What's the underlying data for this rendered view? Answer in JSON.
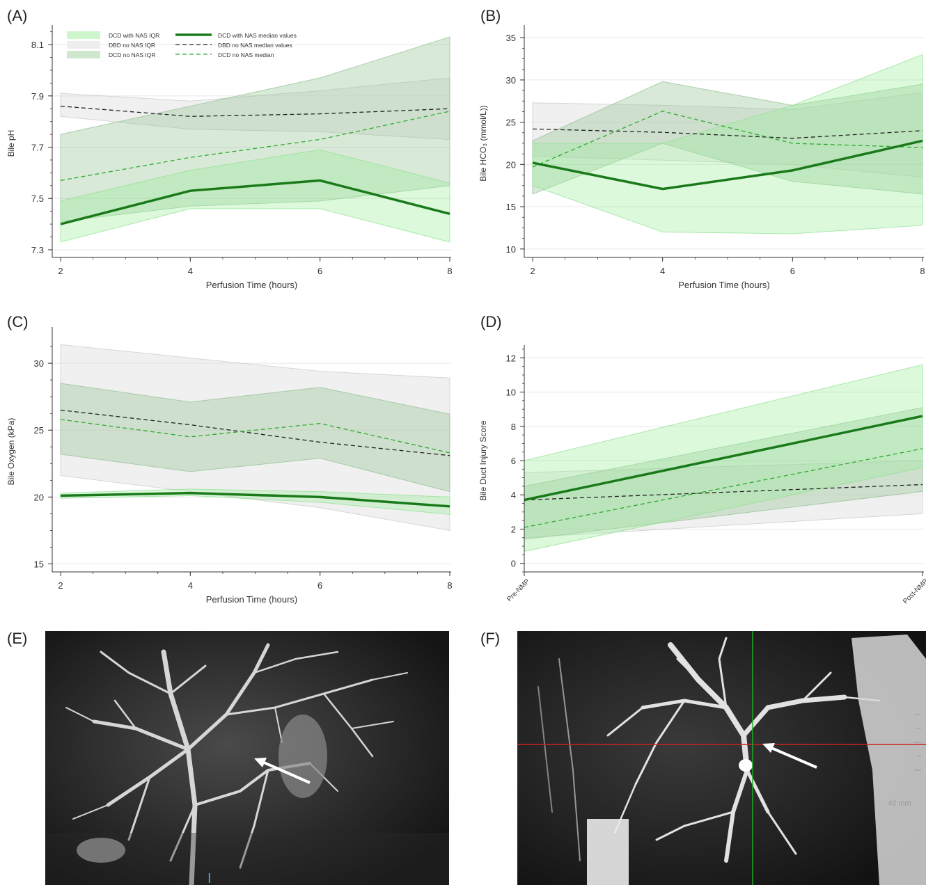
{
  "panels": [
    {
      "letter": "(A)"
    },
    {
      "letter": "(B)"
    },
    {
      "letter": "(C)"
    },
    {
      "letter": "(D)"
    },
    {
      "letter": "(E)"
    },
    {
      "letter": "(F)"
    }
  ],
  "legend": {
    "dcd_nas_iqr": "DCD with NAS IQR",
    "dbd_iqr": "DBD no NAS IQR",
    "dcd_no_nas_iqr": "DCD no NAS IQR",
    "dcd_nas_median": "DCD with NAS median values",
    "dbd_median": "DBD no NAS median values",
    "dcd_no_nas_median": "DCD no NAS median"
  },
  "colors": {
    "dcd_nas_line": "#1a7a1a",
    "dcd_nas_band": "#b8f2b8",
    "dbd_band": "#dcdcdc",
    "dcd_no_nas_band": "#9cc79c",
    "dbd_line": "#222222",
    "dcd_no_nas_line": "#2eaa2e"
  },
  "images": {
    "f_scale": "40 mm"
  },
  "chart_data": [
    {
      "type": "line",
      "panel": "A",
      "xlabel": "Perfusion Time (hours)",
      "ylabel": "Bile pH",
      "x": [
        2,
        4,
        6,
        8
      ],
      "x_tick_labels": [
        "2",
        "4",
        "6",
        "8"
      ],
      "ylim": [
        7.27,
        8.16
      ],
      "y_ticks": [
        7.3,
        7.5,
        7.7,
        7.9,
        8.1
      ],
      "y_tick_labels": [
        "7.3",
        "7.5",
        "7.7",
        "7.9",
        "8.1"
      ],
      "grid": true,
      "legend_position": "top",
      "series": [
        {
          "name": "DBD no NAS IQR",
          "kind": "band",
          "low": [
            7.82,
            7.77,
            7.76,
            7.73
          ],
          "high": [
            7.91,
            7.88,
            7.92,
            7.97
          ]
        },
        {
          "name": "DCD no NAS IQR",
          "kind": "band",
          "low": [
            7.41,
            7.47,
            7.49,
            7.55
          ],
          "high": [
            7.75,
            7.86,
            7.97,
            8.13
          ]
        },
        {
          "name": "DCD with NAS IQR",
          "kind": "band",
          "low": [
            7.33,
            7.46,
            7.46,
            7.33
          ],
          "high": [
            7.49,
            7.61,
            7.69,
            7.56
          ]
        },
        {
          "name": "DBD no NAS median values",
          "kind": "line",
          "values": [
            7.86,
            7.82,
            7.83,
            7.85
          ]
        },
        {
          "name": "DCD no NAS median",
          "kind": "line",
          "values": [
            7.57,
            7.66,
            7.73,
            7.84
          ]
        },
        {
          "name": "DCD with NAS median values",
          "kind": "line",
          "values": [
            7.4,
            7.53,
            7.57,
            7.44
          ]
        }
      ]
    },
    {
      "type": "line",
      "panel": "B",
      "xlabel": "Perfusion Time (hours)",
      "ylabel": "Bile HCO₃ (mmol/L))",
      "x": [
        2,
        4,
        6,
        8
      ],
      "x_tick_labels": [
        "2",
        "4",
        "6",
        "8"
      ],
      "ylim": [
        9,
        36
      ],
      "y_ticks": [
        10,
        15,
        20,
        25,
        30,
        35
      ],
      "y_tick_labels": [
        "10",
        "15",
        "20",
        "25",
        "30",
        "35"
      ],
      "grid": true,
      "series": [
        {
          "name": "DBD no NAS IQR",
          "kind": "band",
          "low": [
            21.0,
            20.5,
            20.0,
            18.5
          ],
          "high": [
            27.3,
            27.0,
            26.5,
            28.5
          ]
        },
        {
          "name": "DCD no NAS IQR",
          "kind": "band",
          "low": [
            16.5,
            22.5,
            18.0,
            16.5
          ],
          "high": [
            22.8,
            29.8,
            27.0,
            29.5
          ]
        },
        {
          "name": "DCD with NAS IQR",
          "kind": "band",
          "low": [
            17.5,
            12.0,
            11.8,
            12.8
          ],
          "high": [
            22.5,
            22.5,
            27.0,
            33.0
          ]
        },
        {
          "name": "DBD no NAS median values",
          "kind": "line",
          "values": [
            24.2,
            23.8,
            23.1,
            24.0
          ]
        },
        {
          "name": "DCD no NAS median",
          "kind": "line",
          "values": [
            19.7,
            26.3,
            22.5,
            22.0
          ]
        },
        {
          "name": "DCD with NAS median values",
          "kind": "line",
          "values": [
            20.2,
            17.1,
            19.3,
            22.8
          ]
        }
      ]
    },
    {
      "type": "line",
      "panel": "C",
      "xlabel": "Perfusion Time (hours)",
      "ylabel": "Bile Oxygen (kPa)",
      "x": [
        2,
        4,
        6,
        8
      ],
      "x_tick_labels": [
        "2",
        "4",
        "6",
        "8"
      ],
      "ylim": [
        14.4,
        32.4
      ],
      "y_ticks": [
        15,
        20,
        25,
        30
      ],
      "y_tick_labels": [
        "15",
        "20",
        "25",
        "30"
      ],
      "grid": true,
      "series": [
        {
          "name": "DBD no NAS IQR",
          "kind": "band",
          "low": [
            21.6,
            20.4,
            19.2,
            17.5
          ],
          "high": [
            31.4,
            30.4,
            29.4,
            28.9
          ]
        },
        {
          "name": "DCD no NAS IQR",
          "kind": "band",
          "low": [
            23.2,
            21.9,
            22.9,
            20.4
          ],
          "high": [
            28.5,
            27.1,
            28.2,
            26.2
          ]
        },
        {
          "name": "DCD with NAS IQR",
          "kind": "band",
          "low": [
            19.9,
            20.1,
            19.6,
            18.7
          ],
          "high": [
            20.3,
            20.6,
            20.4,
            20.0
          ]
        },
        {
          "name": "DBD no NAS median values",
          "kind": "line",
          "values": [
            26.5,
            25.4,
            24.1,
            23.1
          ]
        },
        {
          "name": "DCD no NAS median",
          "kind": "line",
          "values": [
            25.8,
            24.5,
            25.5,
            23.3
          ]
        },
        {
          "name": "DCD with NAS median values",
          "kind": "line",
          "values": [
            20.1,
            20.3,
            20.0,
            19.3
          ]
        }
      ]
    },
    {
      "type": "line",
      "panel": "D",
      "xlabel": "",
      "ylabel": "Bile Duct Injury Score",
      "x": [
        0,
        1
      ],
      "x_tick_labels": [
        "Pre-NMP",
        "Post-NMP"
      ],
      "ylim": [
        -0.5,
        12.5
      ],
      "y_ticks": [
        0,
        2,
        4,
        6,
        8,
        10,
        12
      ],
      "y_tick_labels": [
        "0",
        "2",
        "4",
        "6",
        "8",
        "10",
        "12"
      ],
      "grid": true,
      "series": [
        {
          "name": "DBD no NAS IQR",
          "kind": "band",
          "low": [
            1.5,
            2.9
          ],
          "high": [
            5.3,
            6.0
          ]
        },
        {
          "name": "DCD no NAS IQR",
          "kind": "band",
          "low": [
            1.4,
            4.2
          ],
          "high": [
            4.5,
            9.1
          ]
        },
        {
          "name": "DCD with NAS IQR",
          "kind": "band",
          "low": [
            0.7,
            5.6
          ],
          "high": [
            6.0,
            11.6
          ]
        },
        {
          "name": "DBD no NAS median values",
          "kind": "line",
          "values": [
            3.7,
            4.6
          ]
        },
        {
          "name": "DCD no NAS median",
          "kind": "line",
          "values": [
            2.1,
            6.7
          ]
        },
        {
          "name": "DCD with NAS median values",
          "kind": "line",
          "values": [
            3.7,
            8.6
          ]
        }
      ]
    }
  ]
}
